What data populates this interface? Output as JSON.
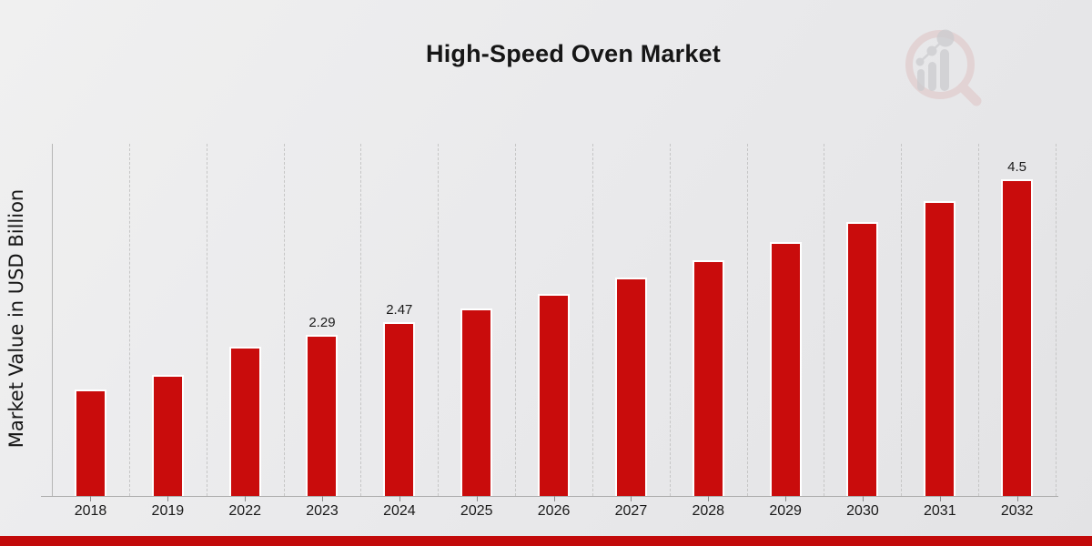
{
  "title": "High-Speed Oven Market",
  "y_axis_label": "Market Value in USD Billion",
  "watermark": {
    "name": "market-research-future-logo"
  },
  "chart_data": {
    "type": "bar",
    "title": "High-Speed Oven Market",
    "xlabel": "",
    "ylabel": "Market Value in USD Billion",
    "categories": [
      "2018",
      "2019",
      "2022",
      "2023",
      "2024",
      "2025",
      "2026",
      "2027",
      "2028",
      "2029",
      "2030",
      "2031",
      "2032"
    ],
    "values": [
      1.51,
      1.72,
      2.12,
      2.29,
      2.47,
      2.66,
      2.87,
      3.1,
      3.34,
      3.61,
      3.89,
      4.19,
      4.5
    ],
    "bar_labels": [
      "",
      "",
      "",
      "2.29",
      "2.47",
      "",
      "",
      "",
      "",
      "",
      "",
      "",
      "4.5"
    ],
    "ylim": [
      0,
      5
    ],
    "grid": "vertical-dashed-category-separators",
    "legend": "none",
    "bar_color": "#c90c0c"
  },
  "colors": {
    "bar": "#c90c0c",
    "banner": "#c20a0a",
    "grid": "#c6c6c6",
    "axis": "#ababab",
    "text": "#1a1a1a",
    "background_start": "#f0f0f0",
    "background_end": "#e3e3e5"
  }
}
